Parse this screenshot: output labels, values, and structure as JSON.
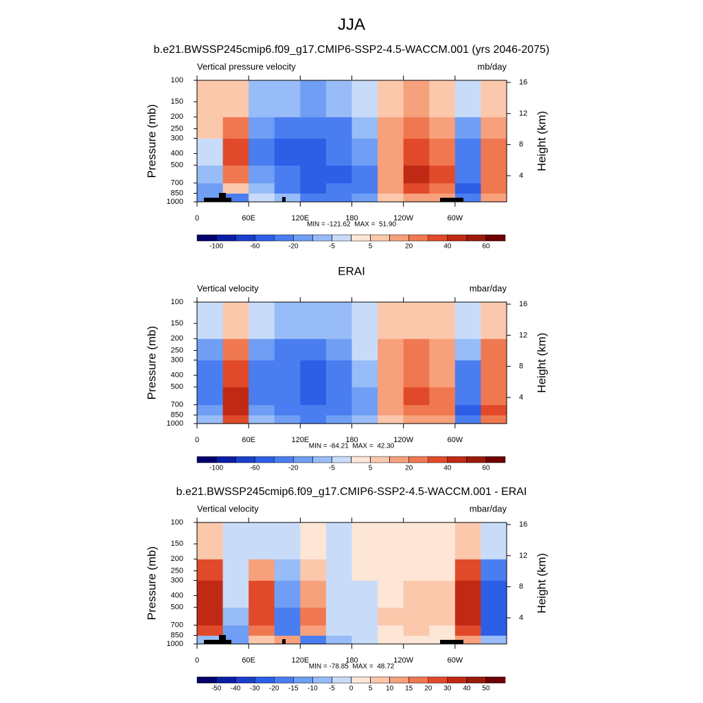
{
  "header": {
    "title": "JJA",
    "subtitle": "b.e21.BWSSP245cmip6.f09_g17.CMIP6-SSP2-4.5-WACCM.001 (yrs 2046-2075)"
  },
  "chart_data": [
    {
      "type": "heatmap",
      "left_label": "Vertical pressure velocity",
      "right_label": "mb/day",
      "ylabel": "Pressure (mb)",
      "y2label": "Height (km)",
      "stats_label": "MIN = -121.62  MAX =  51.90",
      "xlim": [
        0,
        360
      ],
      "xticks": [
        0,
        {
          "value": 60,
          "label": "60E"
        },
        {
          "value": 120,
          "label": "120E"
        },
        180,
        {
          "value": 240,
          "label": "120W"
        },
        {
          "value": 300,
          "label": "60W"
        }
      ],
      "ylim": [
        1000,
        100
      ],
      "ylog": true,
      "yticks": [
        100,
        150,
        200,
        250,
        300,
        400,
        500,
        700,
        850,
        1000
      ],
      "y2lim": [
        0.64,
        16.27
      ],
      "y2ticks": [
        4,
        8,
        12,
        16
      ],
      "xbins": [
        0,
        30,
        60,
        90,
        120,
        150,
        180,
        210,
        240,
        270,
        300,
        330,
        360
      ],
      "ybins": [
        1000,
        850,
        700,
        500,
        300,
        200,
        100
      ],
      "values": [
        [
          -20,
          -30,
          -5,
          -10,
          -40,
          -30,
          -20,
          5,
          10,
          10,
          -40,
          10
        ],
        [
          -20,
          5,
          -10,
          -30,
          -60,
          -40,
          -30,
          10,
          30,
          20,
          -50,
          20
        ],
        [
          -10,
          20,
          -20,
          -40,
          -60,
          -50,
          -30,
          10,
          40,
          30,
          -40,
          20
        ],
        [
          -5,
          30,
          -30,
          -50,
          -50,
          -40,
          -20,
          10,
          30,
          20,
          -30,
          20
        ],
        [
          5,
          20,
          -20,
          -40,
          -40,
          -30,
          -10,
          10,
          20,
          10,
          -20,
          10
        ],
        [
          5,
          5,
          -10,
          -10,
          -20,
          -10,
          -5,
          5,
          10,
          5,
          -5,
          5
        ]
      ],
      "levels": [
        -100,
        -80,
        -60,
        -40,
        -20,
        -10,
        -5,
        0,
        5,
        10,
        20,
        30,
        40,
        50,
        60
      ],
      "colorbar_ticks": [
        -100,
        -60,
        -20,
        -5,
        5,
        20,
        40,
        60
      ],
      "colors": [
        "#04006b",
        "#0a1fa8",
        "#1a3fcc",
        "#2d5ee6",
        "#4a7ef0",
        "#6f9ef4",
        "#98bcf7",
        "#c8dcfa",
        "#fde6d6",
        "#fbc8ac",
        "#f7a07c",
        "#f07850",
        "#e04a2a",
        "#c02a14",
        "#9a1a0c",
        "#700000"
      ]
    },
    {
      "type": "heatmap",
      "title": "ERAI",
      "left_label": "Vertical velocity",
      "right_label": "mbar/day",
      "ylabel": "Pressure (mb)",
      "y2label": "Height (km)",
      "stats_label": "MIN = -84.21  MAX =  42.30",
      "xlim": [
        0,
        360
      ],
      "xticks": [
        0,
        {
          "value": 60,
          "label": "60E"
        },
        {
          "value": 120,
          "label": "120E"
        },
        180,
        {
          "value": 240,
          "label": "120W"
        },
        {
          "value": 300,
          "label": "60W"
        }
      ],
      "ylim": [
        1000,
        100
      ],
      "ylog": true,
      "yticks": [
        100,
        150,
        200,
        250,
        300,
        400,
        500,
        700,
        850,
        1000
      ],
      "y2lim": [
        0.64,
        16.27
      ],
      "y2ticks": [
        4,
        8,
        12,
        16
      ],
      "xbins": [
        0,
        30,
        60,
        90,
        120,
        150,
        180,
        210,
        240,
        270,
        300,
        330,
        360
      ],
      "ybins": [
        1000,
        850,
        700,
        500,
        300,
        200,
        100
      ],
      "values": [
        [
          -10,
          30,
          -10,
          -20,
          -30,
          -20,
          -10,
          5,
          10,
          10,
          -40,
          20
        ],
        [
          -20,
          40,
          -20,
          -30,
          -40,
          -30,
          -20,
          10,
          20,
          20,
          -50,
          30
        ],
        [
          -30,
          40,
          -30,
          -40,
          -60,
          -40,
          -20,
          10,
          30,
          20,
          -40,
          20
        ],
        [
          -30,
          30,
          -30,
          -40,
          -50,
          -30,
          -10,
          10,
          20,
          10,
          -30,
          20
        ],
        [
          -20,
          20,
          -20,
          -30,
          -30,
          -20,
          -5,
          10,
          20,
          10,
          -10,
          20
        ],
        [
          -5,
          5,
          -5,
          -10,
          -10,
          -10,
          -5,
          5,
          5,
          5,
          -5,
          5
        ]
      ],
      "levels": [
        -100,
        -80,
        -60,
        -40,
        -20,
        -10,
        -5,
        0,
        5,
        10,
        20,
        30,
        40,
        50,
        60
      ],
      "colorbar_ticks": [
        -100,
        -60,
        -20,
        -5,
        5,
        20,
        40,
        60
      ],
      "colors": [
        "#04006b",
        "#0a1fa8",
        "#1a3fcc",
        "#2d5ee6",
        "#4a7ef0",
        "#6f9ef4",
        "#98bcf7",
        "#c8dcfa",
        "#fde6d6",
        "#fbc8ac",
        "#f7a07c",
        "#f07850",
        "#e04a2a",
        "#c02a14",
        "#9a1a0c",
        "#700000"
      ]
    },
    {
      "type": "heatmap",
      "title": "b.e21.BWSSP245cmip6.f09_g17.CMIP6-SSP2-4.5-WACCM.001 - ERAI",
      "left_label": "Vertical velocity",
      "right_label": "mbar/day",
      "ylabel": "Pressure (mb)",
      "y2label": "Height (km)",
      "stats_label": "MIN = -78.85  MAX =  48.72",
      "xlim": [
        0,
        360
      ],
      "xticks": [
        0,
        {
          "value": 60,
          "label": "60E"
        },
        {
          "value": 120,
          "label": "120E"
        },
        180,
        {
          "value": 240,
          "label": "120W"
        },
        {
          "value": 300,
          "label": "60W"
        }
      ],
      "ylim": [
        1000,
        100
      ],
      "ylog": true,
      "yticks": [
        100,
        150,
        200,
        250,
        300,
        400,
        500,
        700,
        850,
        1000
      ],
      "y2lim": [
        0.64,
        16.27
      ],
      "y2ticks": [
        4,
        8,
        12,
        16
      ],
      "xbins": [
        0,
        30,
        60,
        90,
        120,
        150,
        180,
        210,
        240,
        270,
        300,
        330,
        360
      ],
      "ybins": [
        1000,
        850,
        700,
        500,
        300,
        200,
        100
      ],
      "values": [
        [
          -10,
          -15,
          5,
          10,
          -20,
          -10,
          -5,
          0,
          0,
          0,
          10,
          -10
        ],
        [
          20,
          -15,
          15,
          -20,
          10,
          -5,
          -5,
          0,
          5,
          0,
          20,
          -30
        ],
        [
          30,
          -10,
          20,
          -20,
          15,
          -5,
          -5,
          5,
          5,
          5,
          30,
          -30
        ],
        [
          30,
          -5,
          20,
          -15,
          10,
          -5,
          -5,
          0,
          5,
          5,
          30,
          -30
        ],
        [
          20,
          -5,
          10,
          -10,
          5,
          -5,
          0,
          0,
          0,
          0,
          20,
          -20
        ],
        [
          5,
          -5,
          -5,
          -5,
          0,
          -5,
          0,
          0,
          0,
          0,
          5,
          -5
        ]
      ],
      "levels": [
        -50,
        -40,
        -30,
        -20,
        -15,
        -10,
        -5,
        0,
        5,
        10,
        15,
        20,
        30,
        40,
        50
      ],
      "colorbar_ticks": [
        -50,
        -40,
        -30,
        -20,
        -15,
        -10,
        -5,
        0,
        5,
        10,
        15,
        20,
        30,
        40,
        50
      ],
      "colors": [
        "#04006b",
        "#0a1fa8",
        "#1a3fcc",
        "#2d5ee6",
        "#4a7ef0",
        "#6f9ef4",
        "#98bcf7",
        "#c8dcfa",
        "#fde6d6",
        "#fbc8ac",
        "#f7a07c",
        "#f07850",
        "#e04a2a",
        "#c02a14",
        "#9a1a0c",
        "#700000"
      ]
    }
  ]
}
